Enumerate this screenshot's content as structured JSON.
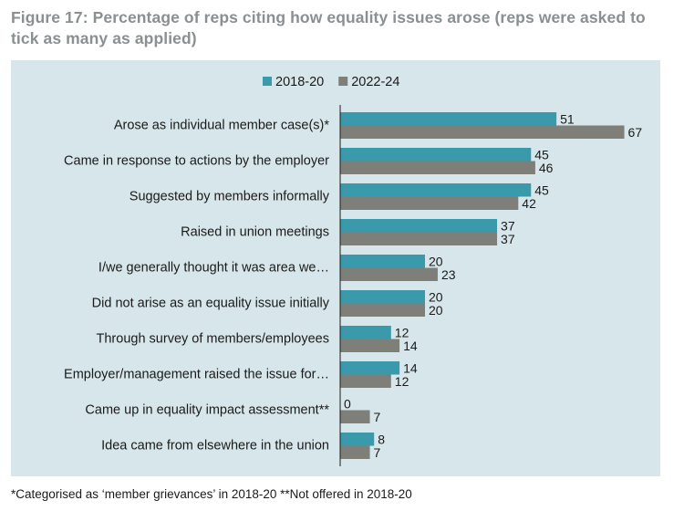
{
  "title": "Figure 17: Percentage of reps citing how equality issues arose (reps were asked to tick as many as applied)",
  "footnote": "*Categorised as ‘member grievances’ in 2018-20 **Not offered in 2018-20",
  "colors": {
    "series1": "#3a9aab",
    "series2": "#7f7f79",
    "panel": "#d7e6ea",
    "axis": "#1a1a1a"
  },
  "chart_data": {
    "type": "bar",
    "orientation": "horizontal",
    "categories": [
      "Arose as individual member case(s)*",
      "Came in response to actions by the employer",
      "Suggested by members informally",
      "Raised in union meetings",
      "I/we generally thought it was area we…",
      "Did not arise as an equality issue initially",
      "Through survey of members/employees",
      "Employer/management raised the issue for…",
      "Came up in equality impact assessment**",
      "Idea came from elsewhere in the union"
    ],
    "series": [
      {
        "name": "2018-20",
        "values": [
          51,
          45,
          45,
          37,
          20,
          20,
          12,
          14,
          0,
          8
        ]
      },
      {
        "name": "2022-24",
        "values": [
          67,
          46,
          42,
          37,
          23,
          20,
          14,
          12,
          7,
          7
        ]
      }
    ],
    "xlim": [
      0,
      70
    ],
    "legend": "top-center",
    "grid": false
  }
}
